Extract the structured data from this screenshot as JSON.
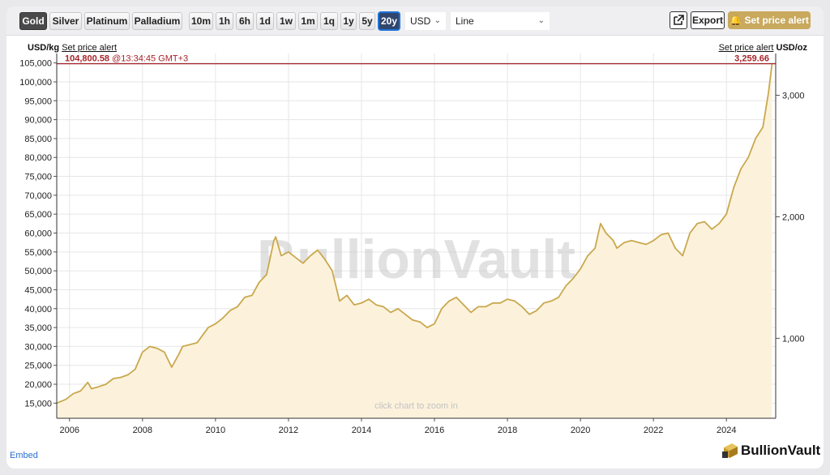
{
  "toolbar": {
    "metals": [
      {
        "label": "Gold",
        "active": true
      },
      {
        "label": "Silver",
        "active": false
      },
      {
        "label": "Platinum",
        "active": false
      },
      {
        "label": "Palladium",
        "active": false
      }
    ],
    "ranges": [
      {
        "label": "10m",
        "active": false
      },
      {
        "label": "1h",
        "active": false
      },
      {
        "label": "6h",
        "active": false
      },
      {
        "label": "1d",
        "active": false
      },
      {
        "label": "1w",
        "active": false
      },
      {
        "label": "1m",
        "active": false
      },
      {
        "label": "1q",
        "active": false
      },
      {
        "label": "1y",
        "active": false
      },
      {
        "label": "5y",
        "active": false
      },
      {
        "label": "20y",
        "active": true
      }
    ],
    "currency": "USD",
    "chart_style": "Line",
    "export_label": "Export",
    "alert_label": "Set price alert"
  },
  "left_axis_header": {
    "unit": "USD/kg",
    "link": "Set price alert"
  },
  "right_axis_header": {
    "unit": "USD/oz",
    "link": "Set price alert"
  },
  "price_line": {
    "left_value": "104,800.58",
    "time": "@13:34:45 GMT+3",
    "right_value": "3,259.66"
  },
  "watermark": "BullionVault",
  "zoom_hint": "click chart to zoom in",
  "embed_link": "Embed",
  "brand": "BullionVault",
  "colors": {
    "line": "#c9a84d",
    "fill": "#fcf2dc",
    "price_line": "#a7242a",
    "grid": "#e6e6e6"
  },
  "chart_data": {
    "type": "area",
    "title": "",
    "x": [
      2005.65,
      2005.9,
      2006.1,
      2006.3,
      2006.5,
      2006.6,
      2006.75,
      2007.0,
      2007.2,
      2007.4,
      2007.6,
      2007.8,
      2008.0,
      2008.2,
      2008.4,
      2008.6,
      2008.8,
      2009.0,
      2009.1,
      2009.3,
      2009.5,
      2009.8,
      2010.0,
      2010.2,
      2010.4,
      2010.6,
      2010.8,
      2011.0,
      2011.2,
      2011.4,
      2011.6,
      2011.65,
      2011.8,
      2012.0,
      2012.2,
      2012.4,
      2012.6,
      2012.8,
      2013.0,
      2013.2,
      2013.4,
      2013.6,
      2013.8,
      2014.0,
      2014.2,
      2014.4,
      2014.6,
      2014.8,
      2015.0,
      2015.2,
      2015.4,
      2015.6,
      2015.8,
      2016.0,
      2016.2,
      2016.4,
      2016.6,
      2016.8,
      2017.0,
      2017.2,
      2017.4,
      2017.6,
      2017.8,
      2018.0,
      2018.2,
      2018.4,
      2018.6,
      2018.8,
      2019.0,
      2019.2,
      2019.4,
      2019.6,
      2019.8,
      2020.0,
      2020.2,
      2020.4,
      2020.55,
      2020.7,
      2020.9,
      2021.0,
      2021.2,
      2021.4,
      2021.6,
      2021.8,
      2022.0,
      2022.2,
      2022.4,
      2022.6,
      2022.8,
      2023.0,
      2023.2,
      2023.4,
      2023.6,
      2023.8,
      2024.0,
      2024.2,
      2024.4,
      2024.6,
      2024.8,
      2025.0,
      2025.15,
      2025.25
    ],
    "y": [
      15000,
      16000,
      17500,
      18200,
      20500,
      18800,
      19200,
      20000,
      21500,
      21800,
      22500,
      24000,
      28500,
      30000,
      29500,
      28500,
      24500,
      28000,
      30000,
      30500,
      31000,
      35000,
      36000,
      37500,
      39500,
      40500,
      43000,
      43500,
      47000,
      49000,
      58000,
      59000,
      54000,
      55000,
      53500,
      52000,
      54000,
      55500,
      53000,
      50000,
      42000,
      43500,
      41000,
      41500,
      42500,
      41000,
      40500,
      39000,
      40000,
      38500,
      37000,
      36500,
      35000,
      36000,
      40000,
      42000,
      43000,
      41000,
      39000,
      40500,
      40500,
      41500,
      41500,
      42500,
      42000,
      40500,
      38500,
      39500,
      41500,
      42000,
      43000,
      46000,
      48000,
      50500,
      54000,
      56000,
      62500,
      60000,
      58000,
      56000,
      57500,
      58000,
      57500,
      57000,
      58000,
      59500,
      60000,
      56000,
      54000,
      60000,
      62500,
      63000,
      61000,
      62500,
      65000,
      72000,
      77000,
      80000,
      85000,
      88000,
      97000,
      104800
    ],
    "xlim": [
      2005.65,
      2025.35
    ],
    "ylim": [
      11000,
      107500
    ],
    "x_ticks": [
      "2006",
      "2008",
      "2010",
      "2012",
      "2014",
      "2016",
      "2018",
      "2020",
      "2022",
      "2024"
    ],
    "y_ticks_left": [
      "15,000",
      "20,000",
      "25,000",
      "30,000",
      "35,000",
      "40,000",
      "45,000",
      "50,000",
      "55,000",
      "60,000",
      "65,000",
      "70,000",
      "75,000",
      "80,000",
      "85,000",
      "90,000",
      "95,000",
      "100,000",
      "105,000"
    ],
    "y_ticks_right": [
      "1,000",
      "2,000",
      "3,000"
    ],
    "y_ticks_right_values": [
      1000,
      2000,
      3000
    ],
    "right_axis_unit_factor": 32.1507,
    "current_value": 104800.58,
    "xlabel": "",
    "ylabel": "USD/kg",
    "ylabel_right": "USD/oz",
    "grid": true,
    "legend": "none"
  }
}
